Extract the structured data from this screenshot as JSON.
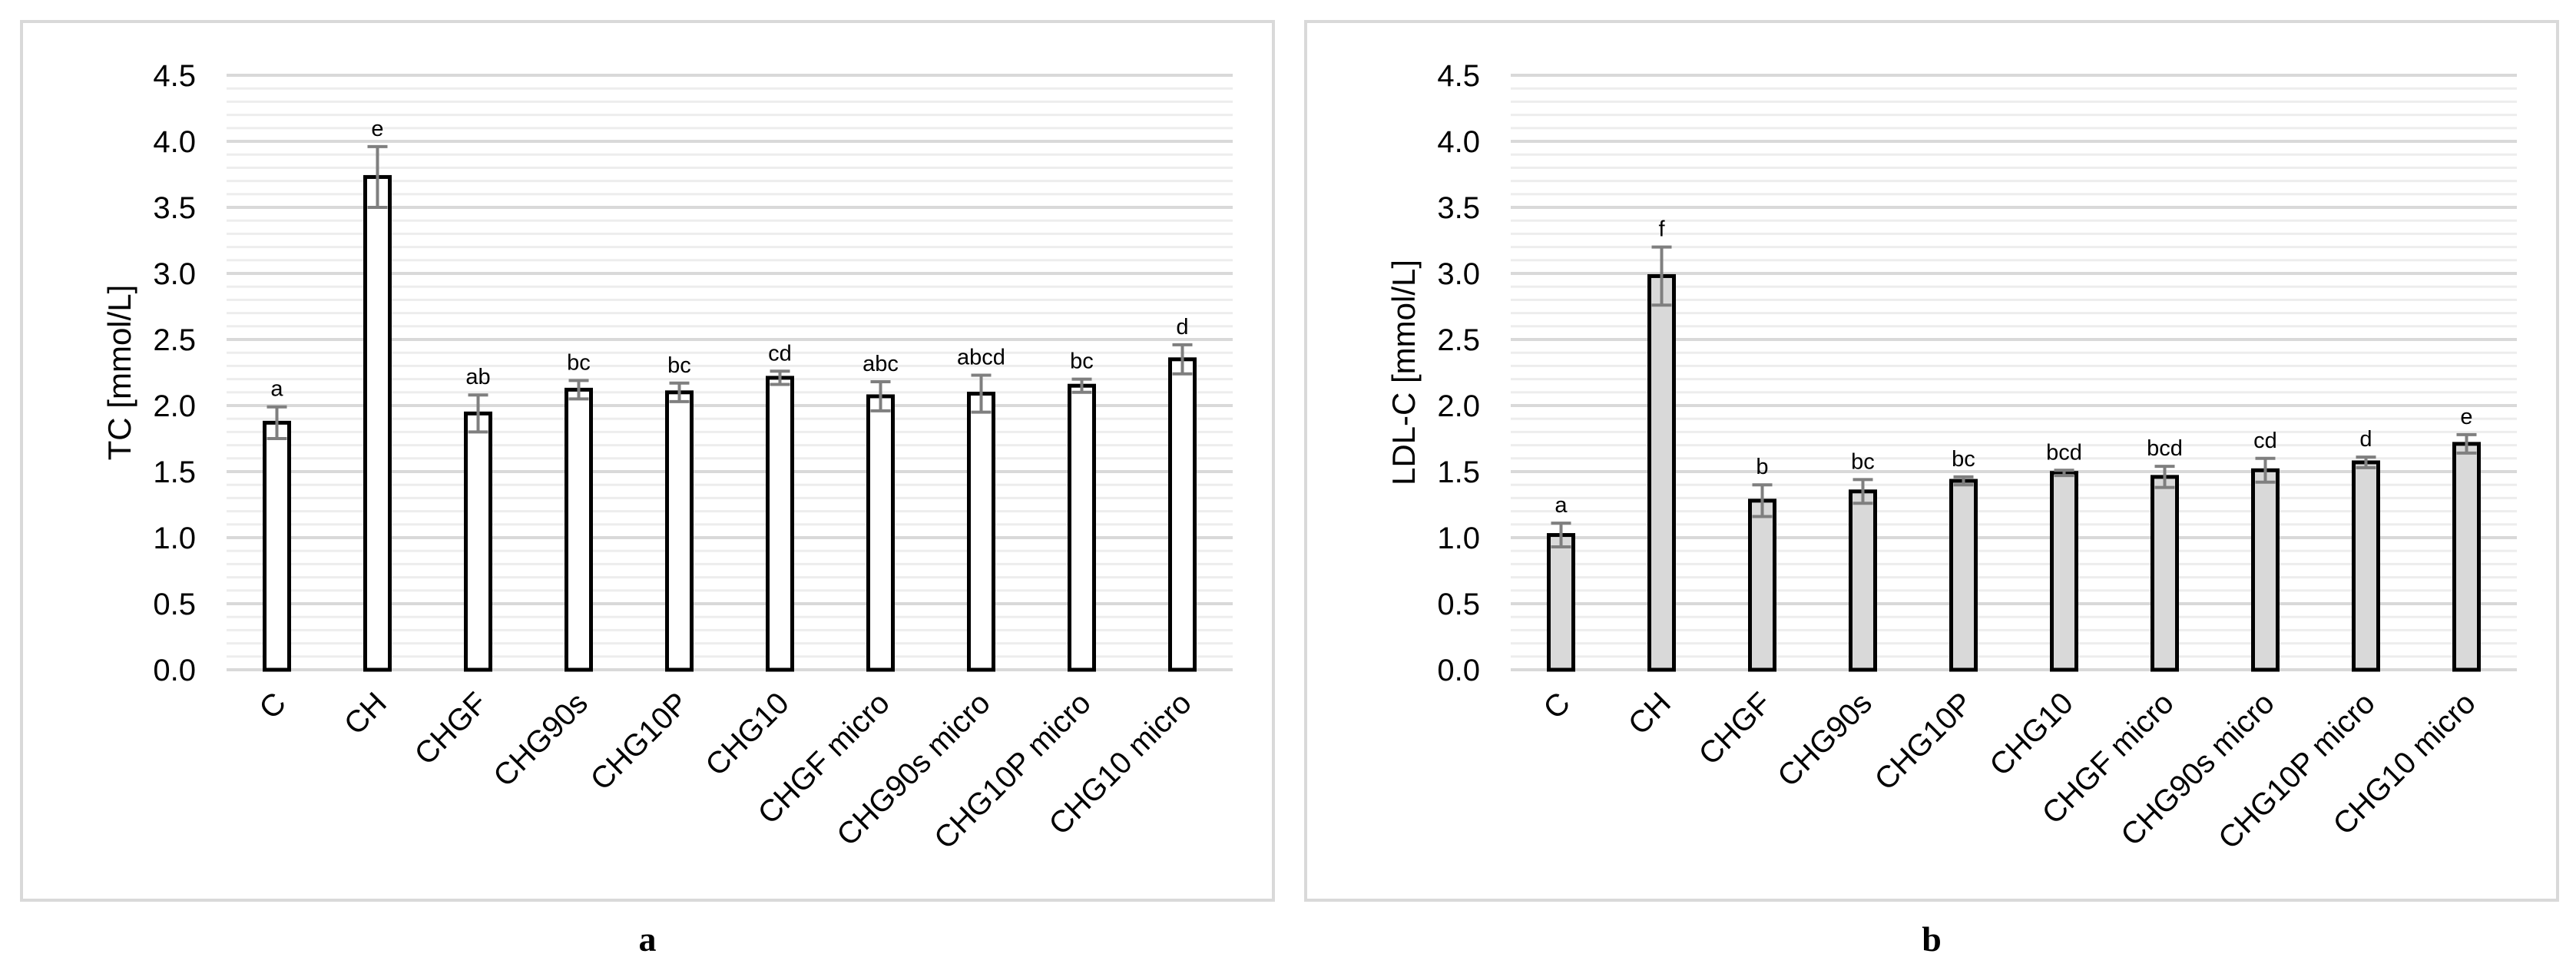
{
  "chart_data": [
    {
      "type": "bar",
      "panel": "a",
      "title": "",
      "xlabel": "",
      "ylabel": "TC [mmol/L]",
      "ylim": [
        0,
        4.5
      ],
      "major_ticks": [
        "0.0",
        "0.5",
        "1.0",
        "1.5",
        "2.0",
        "2.5",
        "3.0",
        "3.5",
        "4.0",
        "4.5"
      ],
      "minor_grid_step": 0.1,
      "grid": true,
      "bar_fill": "#ffffff",
      "bar_stroke": "#000000",
      "categories": [
        "C",
        "CH",
        "CHGF",
        "CHG90s",
        "CHG10P",
        "CHG10",
        "CHGF micro",
        "CHG90s micro",
        "CHG10P micro",
        "CHG10 micro"
      ],
      "values": [
        1.87,
        3.73,
        1.94,
        2.12,
        2.1,
        2.21,
        2.07,
        2.09,
        2.15,
        2.35
      ],
      "errors": [
        0.12,
        0.23,
        0.14,
        0.07,
        0.07,
        0.05,
        0.11,
        0.14,
        0.05,
        0.11
      ],
      "letters": [
        "a",
        "e",
        "ab",
        "bc",
        "bc",
        "cd",
        "abc",
        "abcd",
        "bc",
        "d"
      ]
    },
    {
      "type": "bar",
      "panel": "b",
      "title": "",
      "xlabel": "",
      "ylabel": "LDL-C [mmol/L]",
      "ylim": [
        0,
        4.5
      ],
      "major_ticks": [
        "0.0",
        "0.5",
        "1.0",
        "1.5",
        "2.0",
        "2.5",
        "3.0",
        "3.5",
        "4.0",
        "4.5"
      ],
      "minor_grid_step": 0.1,
      "grid": true,
      "bar_fill": "#d9d9d9",
      "bar_stroke": "#000000",
      "categories": [
        "C",
        "CH",
        "CHGF",
        "CHG90s",
        "CHG10P",
        "CHG10",
        "CHGF micro",
        "CHG90s micro",
        "CHG10P micro",
        "CHG10 micro"
      ],
      "values": [
        1.02,
        2.98,
        1.28,
        1.35,
        1.43,
        1.49,
        1.46,
        1.51,
        1.57,
        1.71
      ],
      "errors": [
        0.09,
        0.22,
        0.12,
        0.09,
        0.03,
        0.02,
        0.08,
        0.09,
        0.04,
        0.07
      ],
      "letters": [
        "a",
        "f",
        "b",
        "bc",
        "bc",
        "bcd",
        "bcd",
        "cd",
        "d",
        "e"
      ]
    }
  ],
  "panel_labels": [
    "a",
    "b"
  ]
}
